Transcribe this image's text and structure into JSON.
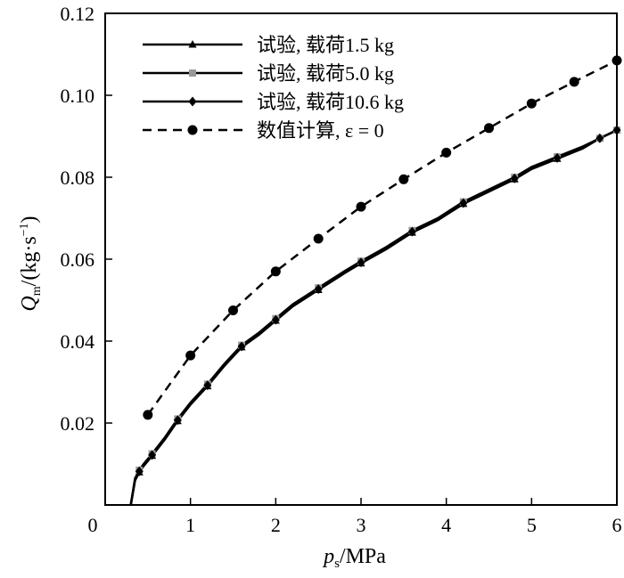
{
  "chart_data": {
    "type": "line",
    "xlim": [
      0,
      6
    ],
    "ylim": [
      0,
      0.12
    ],
    "x_ticks": [
      "0",
      "1",
      "2",
      "3",
      "4",
      "5",
      "6"
    ],
    "y_ticks": [
      "0.02",
      "0.04",
      "0.06",
      "0.08",
      "0.10",
      "0.12"
    ],
    "x_tick_values": [
      0,
      1,
      2,
      3,
      4,
      5,
      6
    ],
    "y_tick_values": [
      0.02,
      0.04,
      0.06,
      0.08,
      0.1,
      0.12
    ],
    "xlabel": {
      "main": "p",
      "sub": "s",
      "rest": "/MPa"
    },
    "ylabel": {
      "main": "Q",
      "sub": "m",
      "rest": "/(kg·s",
      "sup": "−1",
      "close": ")"
    },
    "legend_position": "top-left",
    "series": [
      {
        "name": "试验, 载荷1.5 kg",
        "marker": "triangle",
        "color": "#000000",
        "line": "solid",
        "x": [
          0.3,
          0.35,
          0.4,
          0.45,
          0.55,
          0.7,
          0.85,
          1.0,
          1.2,
          1.4,
          1.6,
          1.8,
          2.0,
          2.2,
          2.5,
          2.8,
          3.0,
          3.3,
          3.6,
          3.9,
          4.2,
          4.5,
          4.8,
          5.0,
          5.3,
          5.6,
          5.8,
          6.0
        ],
        "y": [
          0.0,
          0.006,
          0.008,
          0.0095,
          0.012,
          0.016,
          0.0205,
          0.0245,
          0.029,
          0.034,
          0.0385,
          0.0415,
          0.045,
          0.0485,
          0.0525,
          0.0565,
          0.059,
          0.0625,
          0.0665,
          0.0695,
          0.0735,
          0.0765,
          0.0795,
          0.082,
          0.0845,
          0.087,
          0.0895,
          0.0915
        ]
      },
      {
        "name": "试验, 载荷5.0 kg",
        "marker": "square",
        "color": "#999999",
        "line": "solid",
        "x": [
          0.3,
          0.35,
          0.4,
          0.45,
          0.55,
          0.7,
          0.85,
          1.0,
          1.2,
          1.4,
          1.6,
          1.8,
          2.0,
          2.2,
          2.5,
          2.8,
          3.0,
          3.3,
          3.6,
          3.9,
          4.2,
          4.5,
          4.8,
          5.0,
          5.3,
          5.6,
          5.8,
          6.0
        ],
        "y": [
          0.0,
          0.0065,
          0.0085,
          0.01,
          0.0125,
          0.0165,
          0.021,
          0.025,
          0.0295,
          0.0345,
          0.039,
          0.042,
          0.0455,
          0.049,
          0.053,
          0.057,
          0.0595,
          0.063,
          0.067,
          0.07,
          0.074,
          0.077,
          0.08,
          0.0825,
          0.085,
          0.0875,
          0.0895,
          0.0915
        ]
      },
      {
        "name": "试验, 载荷10.6 kg",
        "marker": "diamond",
        "color": "#000000",
        "line": "solid",
        "x": [
          0.3,
          0.35,
          0.4,
          0.45,
          0.55,
          0.7,
          0.85,
          1.0,
          1.2,
          1.4,
          1.6,
          1.8,
          2.0,
          2.2,
          2.5,
          2.8,
          3.0,
          3.3,
          3.6,
          3.9,
          4.2,
          4.5,
          4.8,
          5.0,
          5.3,
          5.6,
          5.8,
          6.0
        ],
        "y": [
          0.0,
          0.0062,
          0.0082,
          0.0097,
          0.0122,
          0.0162,
          0.0207,
          0.0247,
          0.0292,
          0.0342,
          0.0387,
          0.0417,
          0.0452,
          0.0487,
          0.0527,
          0.0567,
          0.0592,
          0.0627,
          0.0667,
          0.0697,
          0.0737,
          0.0767,
          0.0797,
          0.0822,
          0.0847,
          0.0872,
          0.0895,
          0.0915
        ]
      },
      {
        "name": "数值计算, ε = 0",
        "marker": "circle",
        "color": "#000000",
        "line": "dashed",
        "x": [
          0.5,
          1.0,
          1.5,
          2.0,
          2.5,
          3.0,
          3.5,
          4.0,
          4.5,
          5.0,
          5.5,
          6.0
        ],
        "y": [
          0.022,
          0.0365,
          0.0475,
          0.057,
          0.065,
          0.0728,
          0.0795,
          0.086,
          0.092,
          0.098,
          0.1033,
          0.1085
        ]
      }
    ]
  }
}
